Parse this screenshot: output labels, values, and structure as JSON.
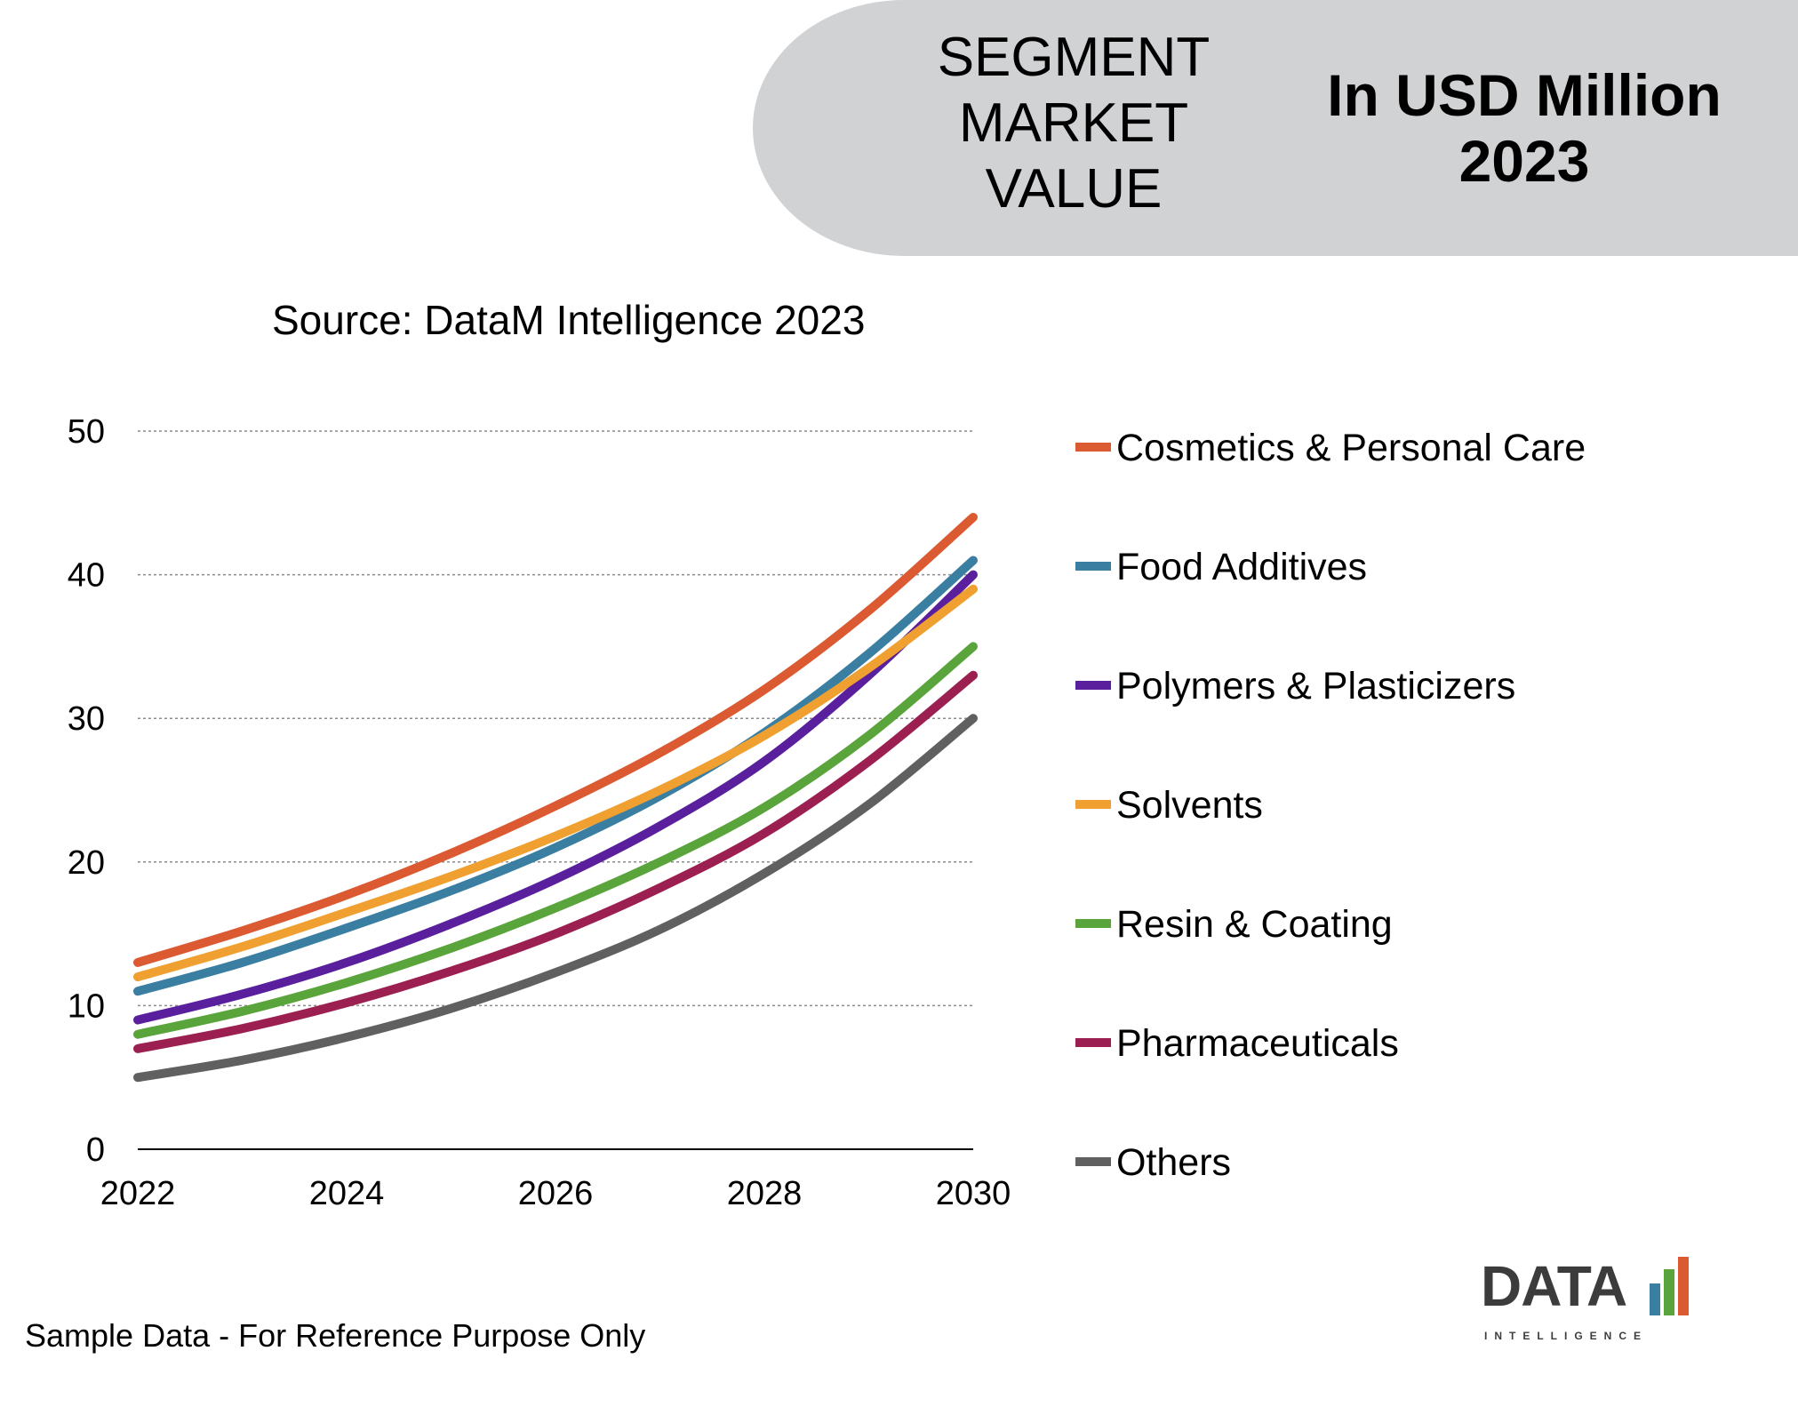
{
  "header": {
    "segment_lines": [
      "SEGMENT",
      "MARKET",
      "VALUE"
    ],
    "unit_lines": [
      "In USD Million",
      "2023"
    ],
    "band_color": "#d0d2d4"
  },
  "source": "Source: DataM Intelligence 2023",
  "footnote": "Sample Data - For Reference Purpose Only",
  "logo": {
    "word": "DATA",
    "sub": "INTELLIGENCE"
  },
  "chart_data": {
    "type": "line",
    "x": [
      2022,
      2023,
      2024,
      2025,
      2026,
      2027,
      2028,
      2029,
      2030
    ],
    "xlim": [
      2022,
      2030
    ],
    "ylim": [
      0,
      50
    ],
    "xticks": [
      "2022",
      "2024",
      "2026",
      "2028",
      "2030"
    ],
    "yticks": [
      "0",
      "10",
      "20",
      "30",
      "40",
      "50"
    ],
    "grid": "horizontal-dotted",
    "legend_position": "right",
    "series": [
      {
        "name": "Cosmetics & Personal Care",
        "color": "#dc5a32",
        "values": [
          13,
          15.2,
          17.7,
          20.6,
          23.9,
          27.6,
          32,
          37.5,
          44
        ]
      },
      {
        "name": "Food Additives",
        "color": "#3a7ea1",
        "values": [
          11,
          13,
          15.4,
          18,
          21,
          24.6,
          29,
          34.5,
          41
        ]
      },
      {
        "name": "Polymers & Plasticizers",
        "color": "#5a1f9c",
        "values": [
          9,
          10.8,
          13,
          15.7,
          18.8,
          22.5,
          27,
          33,
          40
        ]
      },
      {
        "name": "Solvents",
        "color": "#f0a030",
        "values": [
          12,
          14.1,
          16.5,
          19,
          21.8,
          25,
          28.8,
          33.5,
          39
        ]
      },
      {
        "name": "Resin & Coating",
        "color": "#5aa43c",
        "values": [
          8,
          9.6,
          11.6,
          14,
          16.8,
          20,
          23.8,
          28.8,
          35
        ]
      },
      {
        "name": "Pharmaceuticals",
        "color": "#9c1f52",
        "values": [
          7,
          8.4,
          10.2,
          12.4,
          15,
          18.2,
          22,
          27,
          33
        ]
      },
      {
        "name": "Others",
        "color": "#606060",
        "values": [
          5,
          6.2,
          7.8,
          9.8,
          12.3,
          15.3,
          19.2,
          24,
          30
        ]
      }
    ]
  }
}
